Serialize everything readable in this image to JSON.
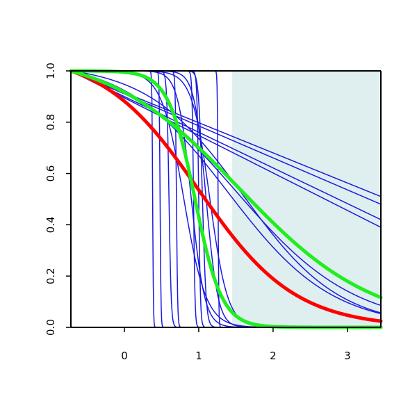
{
  "chart_data": {
    "type": "line",
    "title": "",
    "xlabel": "",
    "ylabel": "",
    "xlim": [
      -0.72,
      3.45
    ],
    "ylim": [
      0,
      1
    ],
    "x_ticks": [
      "0",
      "1",
      "2",
      "3"
    ],
    "x_tick_values": [
      0,
      1,
      2,
      3
    ],
    "y_ticks": [
      "0.0",
      "0.2",
      "0.4",
      "0.6",
      "0.8",
      "1.0"
    ],
    "y_tick_values": [
      0,
      0.2,
      0.4,
      0.6,
      0.8,
      1.0
    ],
    "shaded_region": {
      "x_from": 1.45,
      "x_to": 3.45,
      "color": "#dfeeee"
    },
    "colors": {
      "blue": "#1a1adf",
      "red": "#ff0000",
      "green": "#1fee1f",
      "axis": "#000000"
    },
    "series": [
      {
        "color": "blue",
        "kind": "logistic",
        "center": 0.38,
        "scale": 0.005
      },
      {
        "color": "blue",
        "kind": "logistic",
        "center": 0.48,
        "scale": 0.006
      },
      {
        "color": "blue",
        "kind": "logistic",
        "center": 0.7,
        "scale": 0.008
      },
      {
        "color": "blue",
        "kind": "logistic",
        "center": 0.6,
        "scale": 0.015
      },
      {
        "color": "blue",
        "kind": "logistic",
        "center": 0.93,
        "scale": 0.01
      },
      {
        "color": "blue",
        "kind": "logistic",
        "center": 1.0,
        "scale": 0.012
      },
      {
        "color": "blue",
        "kind": "logistic",
        "center": 1.05,
        "scale": 0.025
      },
      {
        "color": "blue",
        "kind": "logistic",
        "center": 1.26,
        "scale": 0.005
      },
      {
        "color": "blue",
        "kind": "logistic",
        "center": 0.9,
        "scale": 0.09
      },
      {
        "color": "blue",
        "kind": "logistic",
        "center": 1.1,
        "scale": 0.08
      },
      {
        "color": "blue",
        "kind": "logistic",
        "center": 0.8,
        "scale": 0.15
      },
      {
        "color": "blue",
        "kind": "logistic",
        "center": 1.15,
        "scale": 0.12
      },
      {
        "color": "blue",
        "kind": "linear",
        "y0": 1.0,
        "y1": 0.51
      },
      {
        "color": "blue",
        "kind": "linear",
        "y0": 1.0,
        "y1": 0.48
      },
      {
        "color": "blue",
        "kind": "linear",
        "y0": 1.0,
        "y1": 0.42
      },
      {
        "color": "blue",
        "kind": "linear",
        "y0": 1.0,
        "y1": 0.39
      },
      {
        "color": "blue",
        "kind": "logistic",
        "center": 1.55,
        "scale": 0.9
      },
      {
        "color": "blue",
        "kind": "logistic",
        "center": 1.5,
        "scale": 0.8
      },
      {
        "color": "blue",
        "kind": "logistic",
        "center": 1.6,
        "scale": 0.65
      },
      {
        "color": "blue",
        "kind": "logistic",
        "center": 1.4,
        "scale": 0.7
      },
      {
        "color": "red",
        "kind": "logistic",
        "center": 1.0,
        "scale": 0.65,
        "width": 5
      },
      {
        "color": "green",
        "kind": "logistic",
        "center": 1.55,
        "scale": 0.9,
        "width": 5
      },
      {
        "color": "green",
        "kind": "logistic",
        "center": 0.95,
        "scale": 0.18,
        "width": 5
      }
    ]
  }
}
